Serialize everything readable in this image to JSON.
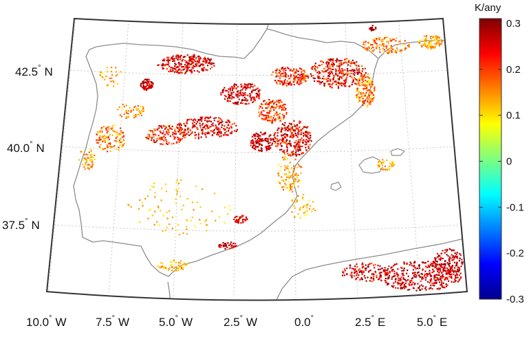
{
  "colorbar": {
    "title": "K/any",
    "ticks": [
      "0.3",
      "0.2",
      "0.1",
      "0",
      "-0.1",
      "-0.2",
      "-0.3"
    ],
    "min": -0.3,
    "max": 0.3,
    "colormap": "jet"
  },
  "axes": {
    "lon_labels": [
      {
        "num": "10.0",
        "dir": "W"
      },
      {
        "num": "7.5",
        "dir": "W"
      },
      {
        "num": "5.0",
        "dir": "W"
      },
      {
        "num": "2.5",
        "dir": "W"
      },
      {
        "num": "0.0",
        "dir": ""
      },
      {
        "num": "2.5",
        "dir": "E"
      },
      {
        "num": "5.0",
        "dir": "E"
      }
    ],
    "lat_labels": [
      {
        "num": "42.5",
        "dir": "N"
      },
      {
        "num": "40.0",
        "dir": "N"
      },
      {
        "num": "37.5",
        "dir": "N"
      }
    ],
    "degree_symbol": "°"
  },
  "colors": {
    "coast": "#8c8c8c",
    "frame": "#333333",
    "grid": "#c8c8c8"
  }
}
